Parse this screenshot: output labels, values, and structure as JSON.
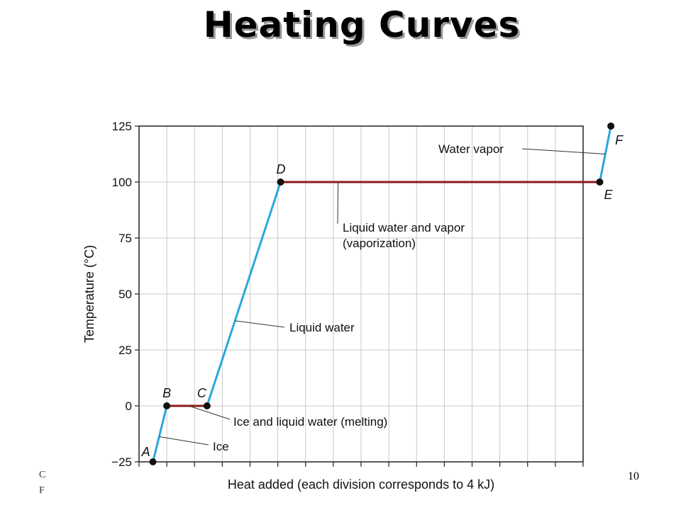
{
  "slide": {
    "title": "Heating Curves",
    "number": "10",
    "footer_line1": "C",
    "footer_line2": "F"
  },
  "chart_data": {
    "type": "line",
    "xlabel": "Heat added (each division corresponds to 4 kJ)",
    "ylabel": "Temperature (°C)",
    "ylim": [
      -25,
      125
    ],
    "yticks": [
      -25,
      0,
      25,
      50,
      75,
      100,
      125
    ],
    "x_divisions": 16,
    "grid": true,
    "points": [
      {
        "name": "A",
        "x": 0.5,
        "y": -25
      },
      {
        "name": "B",
        "x": 1.0,
        "y": 0
      },
      {
        "name": "C",
        "x": 2.45,
        "y": 0
      },
      {
        "name": "D",
        "x": 5.1,
        "y": 100
      },
      {
        "name": "E",
        "x": 16.6,
        "y": 100
      },
      {
        "name": "F",
        "x": 17.0,
        "y": 125
      }
    ],
    "segments": [
      {
        "from": "A",
        "to": "B",
        "phase": "Ice",
        "color": "#2aa7df"
      },
      {
        "from": "B",
        "to": "C",
        "phase": "Ice and liquid water (melting)",
        "color": "#8b1a1a"
      },
      {
        "from": "C",
        "to": "D",
        "phase": "Liquid water",
        "color": "#2aa7df"
      },
      {
        "from": "D",
        "to": "E",
        "phase": "Liquid water and vapor (vaporization)",
        "color": "#8b1a1a"
      },
      {
        "from": "E",
        "to": "F",
        "phase": "Water vapor",
        "color": "#2aa7df"
      }
    ],
    "annotations": [
      {
        "text": "Ice",
        "segment": "A-B"
      },
      {
        "text": "Ice and liquid water (melting)",
        "segment": "B-C"
      },
      {
        "text": "Liquid water",
        "segment": "C-D"
      },
      {
        "text_lines": [
          "Liquid water and vapor",
          "(vaporization)"
        ],
        "segment": "D-E"
      },
      {
        "text": "Water vapor",
        "segment": "E-F"
      }
    ]
  }
}
